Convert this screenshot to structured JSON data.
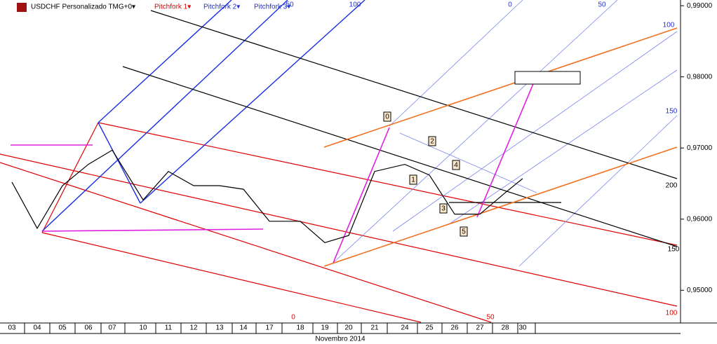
{
  "chart_data": {
    "type": "line",
    "title": "USDCHF Personalizado TMG+0▾",
    "tools": [
      "Pitchfork 1▾",
      "Pitchfork 2▾",
      "Pitchfork 3▾"
    ],
    "tool_colors": [
      "#e00000",
      "#2030d0",
      "#2030d0"
    ],
    "x_label": "Novembro 2014",
    "categories": [
      "03",
      "04",
      "05",
      "06",
      "07",
      "10",
      "11",
      "12",
      "13",
      "14",
      "17",
      "18",
      "19",
      "20",
      "21",
      "24",
      "25",
      "26",
      "27",
      "28",
      "30"
    ],
    "series": [
      {
        "name": "USDCHF",
        "color": "#000000",
        "values": [
          0.9652,
          0.9587,
          0.9647,
          0.9677,
          0.9697,
          0.9627,
          0.9667,
          0.9647,
          0.9647,
          0.9642,
          0.9597,
          0.9597,
          0.9567,
          0.9577,
          0.9667,
          0.9677,
          0.9662,
          0.9607,
          0.9607,
          0.9637,
          0.9657
        ]
      }
    ],
    "ylim": [
      0.9455,
      0.9908
    ],
    "yticks": [
      {
        "value": 0.99,
        "label": "0,99000"
      },
      {
        "value": 0.98,
        "label": "0,98000"
      },
      {
        "value": 0.97,
        "label": "0,97000"
      },
      {
        "value": 0.96,
        "label": "0,96000"
      },
      {
        "value": 0.95,
        "label": "0,95000"
      }
    ],
    "annotations": {
      "red_levels": [
        "0",
        "50",
        "100"
      ],
      "blue_levels": [
        "50",
        "100",
        "0",
        "50",
        "100",
        "150",
        "200",
        "150"
      ],
      "waves": [
        "0",
        "1",
        "2",
        "3",
        "4",
        "5"
      ]
    }
  }
}
